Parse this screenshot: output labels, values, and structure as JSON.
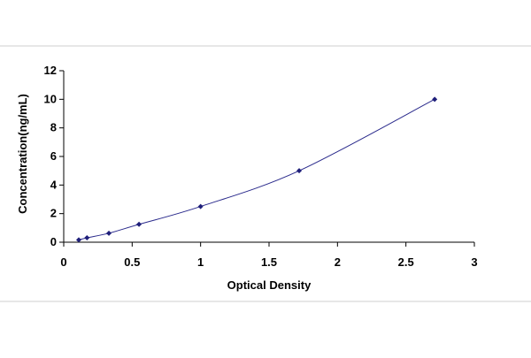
{
  "chart_data": {
    "type": "scatter",
    "title": "",
    "xlabel": "Optical Density",
    "ylabel": "Concentration(ng/mL)",
    "xlim": [
      0,
      3
    ],
    "ylim": [
      0,
      12
    ],
    "x_ticks": [
      "0",
      "0.5",
      "1",
      "1.5",
      "2",
      "2.5",
      "3"
    ],
    "y_ticks": [
      "0",
      "2",
      "4",
      "6",
      "8",
      "10",
      "12"
    ],
    "grid": false,
    "legend": "none",
    "trendline": "smooth curve through points",
    "series": [
      {
        "points": [
          {
            "x": 0.11,
            "y": 0.16
          },
          {
            "x": 0.17,
            "y": 0.31
          },
          {
            "x": 0.33,
            "y": 0.63
          },
          {
            "x": 0.55,
            "y": 1.25
          },
          {
            "x": 1.0,
            "y": 2.5
          },
          {
            "x": 1.72,
            "y": 5.0
          },
          {
            "x": 2.71,
            "y": 10.0
          }
        ]
      }
    ],
    "colors": {
      "marker": "#1f1f7a",
      "line": "#2a2a8c",
      "axis": "#000000",
      "frame": "#cfcfcf"
    }
  }
}
